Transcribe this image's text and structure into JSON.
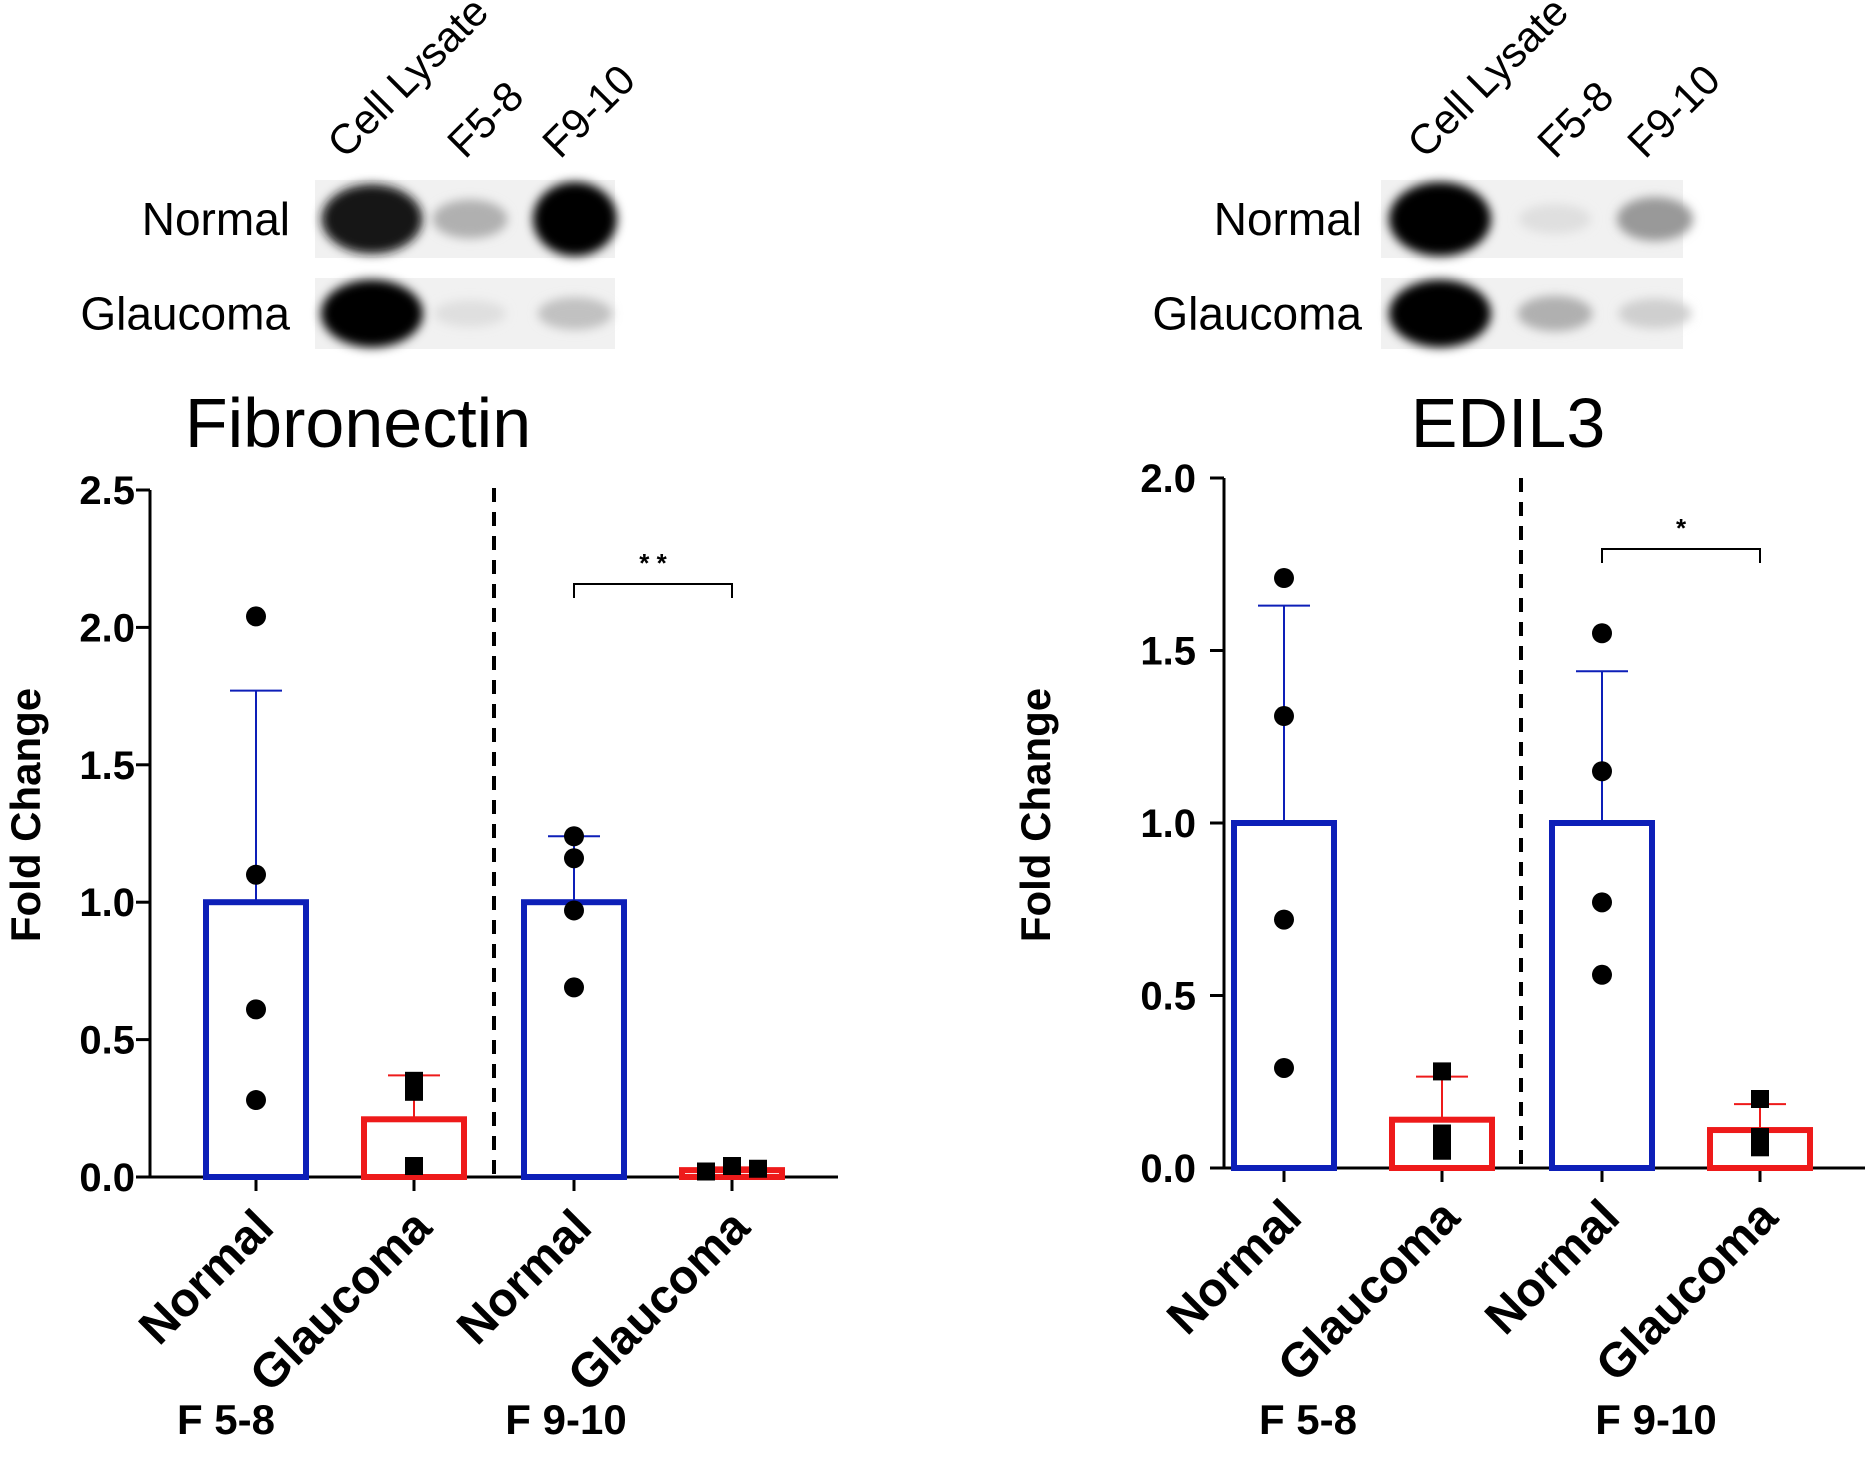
{
  "colors": {
    "normal": "#0d1fb8",
    "glaucoma": "#ee1a1a",
    "ink": "#000000",
    "background": "#ffffff"
  },
  "chart_data": [
    {
      "type": "bar",
      "title": "Fibronectin",
      "ylabel": "Fold  Change",
      "xlabel": "",
      "ylim": [
        0,
        2.5
      ],
      "yticks": [
        "0.0",
        "0.5",
        "1.0",
        "1.5",
        "2.0",
        "2.5"
      ],
      "ytick_values": [
        0,
        0.5,
        1.0,
        1.5,
        2.0,
        2.5
      ],
      "categories": [
        "Normal",
        "Glaucoma",
        "Normal",
        "Glaucoma"
      ],
      "groups": [
        {
          "label": "F 5-8",
          "categories": [
            0,
            1
          ]
        },
        {
          "label": "F 9-10",
          "categories": [
            2,
            3
          ]
        }
      ],
      "series": [
        {
          "name": "Normal",
          "color_key": "normal",
          "marker": "circle"
        },
        {
          "name": "Glaucoma",
          "color_key": "glaucoma",
          "marker": "square"
        }
      ],
      "bars": [
        {
          "category": "Normal",
          "group": "F 5-8",
          "series": "Normal",
          "mean": 1.0,
          "sd": 0.77,
          "points": [
            2.04,
            1.1,
            0.61,
            0.28
          ]
        },
        {
          "category": "Glaucoma",
          "group": "F 5-8",
          "series": "Glaucoma",
          "mean": 0.21,
          "sd": 0.16,
          "points": [
            0.35,
            0.31,
            0.04
          ]
        },
        {
          "category": "Normal",
          "group": "F 9-10",
          "series": "Normal",
          "mean": 1.0,
          "sd": 0.24,
          "points": [
            1.24,
            1.16,
            0.97,
            0.69
          ]
        },
        {
          "category": "Glaucoma",
          "group": "F 9-10",
          "series": "Glaucoma",
          "mean": 0.025,
          "sd": 0.01,
          "points": [
            0.02,
            0.04,
            0.03
          ]
        }
      ],
      "significance": [
        {
          "from": 2,
          "to": 3,
          "label": "* *"
        }
      ],
      "blot": {
        "lanes": [
          "Cell Lysate",
          "F5-8",
          "F9-10"
        ],
        "rows": [
          {
            "label": "Normal",
            "intensities": [
              0.9,
              0.25,
              1.0
            ]
          },
          {
            "label": "Glaucoma",
            "intensities": [
              1.0,
              0.05,
              0.18
            ]
          }
        ]
      }
    },
    {
      "type": "bar",
      "title": "EDIL3",
      "ylabel": "Fold Change",
      "xlabel": "",
      "ylim": [
        0,
        2.0
      ],
      "yticks": [
        "0.0",
        "0.5",
        "1.0",
        "1.5",
        "2.0"
      ],
      "ytick_values": [
        0,
        0.5,
        1.0,
        1.5,
        2.0
      ],
      "categories": [
        "Normal",
        "Glaucoma",
        "Normal",
        "Glaucoma"
      ],
      "groups": [
        {
          "label": "F 5-8",
          "categories": [
            0,
            1
          ]
        },
        {
          "label": "F 9-10",
          "categories": [
            2,
            3
          ]
        }
      ],
      "series": [
        {
          "name": "Normal",
          "color_key": "normal",
          "marker": "circle"
        },
        {
          "name": "Glaucoma",
          "color_key": "glaucoma",
          "marker": "square"
        }
      ],
      "bars": [
        {
          "category": "Normal",
          "group": "F 5-8",
          "series": "Normal",
          "mean": 1.0,
          "sd": 0.63,
          "points": [
            1.71,
            1.31,
            0.72,
            0.29
          ]
        },
        {
          "category": "Glaucoma",
          "group": "F 5-8",
          "series": "Glaucoma",
          "mean": 0.14,
          "sd": 0.125,
          "points": [
            0.28,
            0.1,
            0.05
          ]
        },
        {
          "category": "Normal",
          "group": "F 9-10",
          "series": "Normal",
          "mean": 1.0,
          "sd": 0.44,
          "points": [
            1.55,
            1.15,
            0.77,
            0.56
          ]
        },
        {
          "category": "Glaucoma",
          "group": "F 9-10",
          "series": "Glaucoma",
          "mean": 0.11,
          "sd": 0.075,
          "points": [
            0.2,
            0.09,
            0.06
          ]
        }
      ],
      "significance": [
        {
          "from": 2,
          "to": 3,
          "label": "*"
        }
      ],
      "blot": {
        "lanes": [
          "Cell Lysate",
          "F5-8",
          "F9-10"
        ],
        "rows": [
          {
            "label": "Normal",
            "intensities": [
              1.0,
              0.05,
              0.35
            ]
          },
          {
            "label": "Glaucoma",
            "intensities": [
              1.0,
              0.25,
              0.12
            ]
          }
        ]
      }
    }
  ]
}
